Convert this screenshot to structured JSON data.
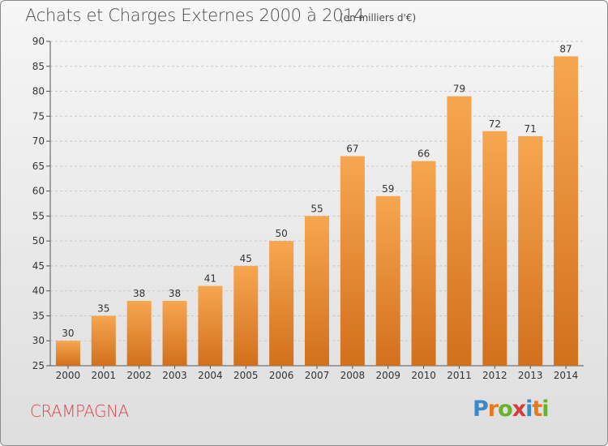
{
  "header": {
    "title": "Achats et Charges Externes 2000 à 2014",
    "subtitle": "(en milliers d'€)"
  },
  "footer": {
    "town": "CRAMPAGNA",
    "logo_text": "Proxiti"
  },
  "colors": {
    "bar_top": "#f7a650",
    "bar_bottom": "#d2701c",
    "town": "#d9484f",
    "logo_letters": [
      "#3b8ac8",
      "#e8781a",
      "#6bb02e",
      "#d63c3c",
      "#3b8ac8",
      "#e8781a",
      "#6bb02e"
    ]
  },
  "chart_data": {
    "type": "bar",
    "title": "Achats et Charges Externes 2000 à 2014",
    "subtitle": "(en milliers d'€)",
    "categories": [
      "2000",
      "2001",
      "2002",
      "2003",
      "2004",
      "2005",
      "2006",
      "2007",
      "2008",
      "2009",
      "2010",
      "2011",
      "2012",
      "2013",
      "2014"
    ],
    "values": [
      30,
      35,
      38,
      38,
      41,
      45,
      50,
      55,
      67,
      59,
      66,
      79,
      72,
      71,
      87
    ],
    "ylim": [
      25,
      90
    ],
    "yticks": [
      25,
      30,
      35,
      40,
      45,
      50,
      55,
      60,
      65,
      70,
      75,
      80,
      85,
      90
    ],
    "grid": true,
    "data_labels": true
  }
}
